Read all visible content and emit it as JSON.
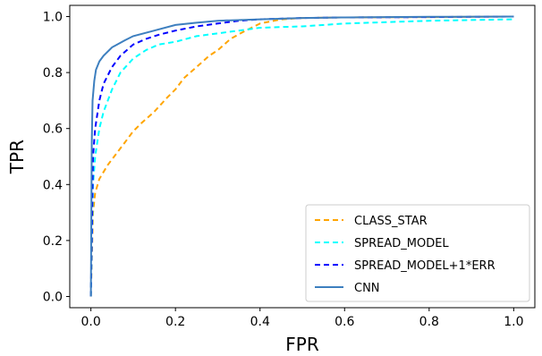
{
  "chart_data": {
    "type": "line",
    "title": "",
    "xlabel": "FPR",
    "ylabel": "TPR",
    "xlim": [
      -0.05,
      1.05
    ],
    "ylim": [
      -0.04,
      1.04
    ],
    "xticks": [
      0.0,
      0.2,
      0.4,
      0.6,
      0.8,
      1.0
    ],
    "xtick_labels": [
      "0.0",
      "0.2",
      "0.4",
      "0.6",
      "0.8",
      "1.0"
    ],
    "yticks": [
      0.0,
      0.2,
      0.4,
      0.6,
      0.8,
      1.0
    ],
    "ytick_labels": [
      "0.0",
      "0.2",
      "0.4",
      "0.6",
      "0.8",
      "1.0"
    ],
    "grid": false,
    "legend_position": "lower-right",
    "series": [
      {
        "name": "CLASS_STAR",
        "color": "#ffa500",
        "dash": "dashed",
        "x": [
          0.0,
          0.005,
          0.01,
          0.02,
          0.04,
          0.06,
          0.08,
          0.1,
          0.12,
          0.15,
          0.18,
          0.2,
          0.22,
          0.25,
          0.28,
          0.3,
          0.33,
          0.36,
          0.4,
          0.45,
          0.5,
          0.6,
          0.8,
          1.0
        ],
        "y": [
          0.0,
          0.3,
          0.37,
          0.42,
          0.47,
          0.51,
          0.55,
          0.59,
          0.62,
          0.66,
          0.71,
          0.74,
          0.78,
          0.82,
          0.86,
          0.88,
          0.92,
          0.945,
          0.975,
          0.99,
          0.995,
          0.997,
          0.998,
          1.0
        ]
      },
      {
        "name": "SPREAD_MODEL",
        "color": "#00ffff",
        "dash": "dashed",
        "x": [
          0.0,
          0.005,
          0.01,
          0.02,
          0.03,
          0.05,
          0.07,
          0.1,
          0.13,
          0.16,
          0.2,
          0.25,
          0.3,
          0.35,
          0.4,
          0.5,
          0.6,
          0.8,
          1.0
        ],
        "y": [
          0.0,
          0.4,
          0.5,
          0.6,
          0.66,
          0.74,
          0.8,
          0.85,
          0.88,
          0.9,
          0.91,
          0.93,
          0.94,
          0.95,
          0.96,
          0.965,
          0.975,
          0.985,
          0.99
        ]
      },
      {
        "name": "SPREAD_MODEL+1*ERR",
        "color": "#0000ff",
        "dash": "dashed",
        "x": [
          0.0,
          0.005,
          0.01,
          0.02,
          0.03,
          0.05,
          0.07,
          0.1,
          0.13,
          0.16,
          0.2,
          0.25,
          0.3,
          0.35,
          0.4,
          0.5,
          0.6,
          0.8,
          1.0
        ],
        "y": [
          0.0,
          0.5,
          0.6,
          0.7,
          0.76,
          0.82,
          0.86,
          0.9,
          0.92,
          0.935,
          0.95,
          0.965,
          0.975,
          0.985,
          0.99,
          0.995,
          0.997,
          0.998,
          1.0
        ]
      },
      {
        "name": "CNN",
        "color": "#3d7fbf",
        "dash": "solid",
        "x": [
          0.0,
          0.002,
          0.004,
          0.008,
          0.012,
          0.02,
          0.03,
          0.05,
          0.08,
          0.1,
          0.15,
          0.2,
          0.25,
          0.3,
          0.4,
          0.5,
          0.6,
          0.8,
          1.0
        ],
        "y": [
          0.0,
          0.55,
          0.7,
          0.77,
          0.81,
          0.84,
          0.86,
          0.89,
          0.915,
          0.93,
          0.95,
          0.97,
          0.978,
          0.985,
          0.99,
          0.995,
          0.997,
          0.999,
          1.0
        ]
      }
    ]
  }
}
